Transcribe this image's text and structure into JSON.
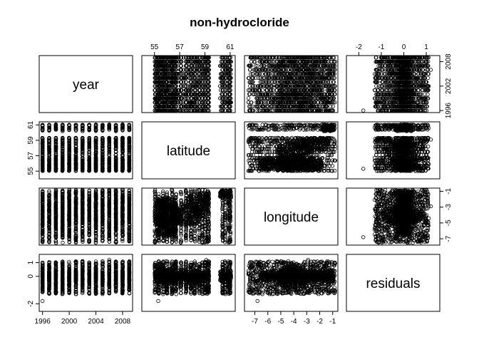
{
  "chart_data": {
    "type": "scatter",
    "subtype": "pairs-matrix",
    "title": "non-hydrocloride",
    "variables": [
      "year",
      "latitude",
      "longitude",
      "residuals"
    ],
    "ranges": {
      "year": [
        1995.5,
        2009.5
      ],
      "latitude": [
        54.0,
        61.4
      ],
      "longitude": [
        -7.8,
        -0.6
      ],
      "residuals": [
        -2.55,
        1.6
      ]
    },
    "axis_ticks": {
      "year": [
        "1996",
        "2000",
        "2004",
        "2008"
      ],
      "year_right": [
        "1996",
        "2002",
        "2008"
      ],
      "latitude": [
        "55",
        "57",
        "59",
        "61"
      ],
      "longitude": [
        "-7",
        "-6",
        "-5",
        "-4",
        "-3",
        "-2",
        "-1"
      ],
      "longitude_right": [
        "-7",
        "-5",
        "-3",
        "-1"
      ],
      "residuals": [
        "-2",
        "0",
        "1"
      ],
      "residuals_top": [
        "-2",
        "-1",
        "0",
        "1"
      ]
    },
    "marker": "open-circle",
    "color": "#000000",
    "grid": false,
    "legend": "none",
    "points": [
      {
        "year": 1996,
        "latitude": 55.3,
        "longitude": -6.8,
        "residuals": -1.8
      },
      {
        "year": 1998,
        "latitude": 56.1,
        "longitude": -5.2,
        "residuals": 0.9
      },
      {
        "year": 2000,
        "latitude": 56.8,
        "longitude": -4.6,
        "residuals": -0.3
      },
      {
        "year": 2002,
        "latitude": 57.4,
        "longitude": -3.9,
        "residuals": 0.2
      },
      {
        "year": 2004,
        "latitude": 58.2,
        "longitude": -3.4,
        "residuals": -0.6
      },
      {
        "year": 2006,
        "latitude": 59.1,
        "longitude": -2.9,
        "residuals": 1.2
      },
      {
        "year": 2008,
        "latitude": 60.4,
        "longitude": -1.6,
        "residuals": -0.1
      },
      {
        "year": 2009,
        "latitude": 61.0,
        "longitude": -0.9,
        "residuals": 0.4
      }
    ]
  }
}
